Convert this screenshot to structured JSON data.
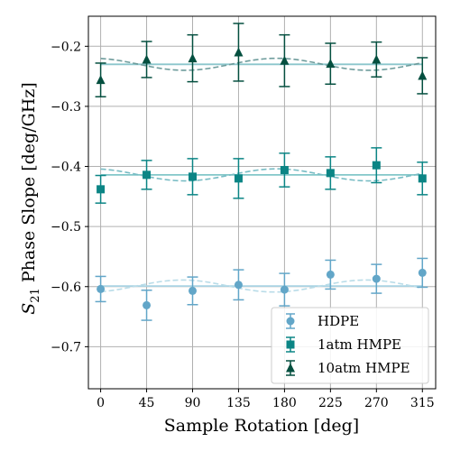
{
  "chart_data": {
    "type": "scatter",
    "xlabel": "Sample Rotation [deg]",
    "ylabel_sub": "21",
    "ylabel_rest": " Phase Slope [deg/GHz]",
    "ylabel_var": "S",
    "xlim": [
      -12,
      328
    ],
    "ylim": [
      -0.77,
      -0.15
    ],
    "xticks": [
      0,
      45,
      90,
      135,
      180,
      225,
      270,
      315
    ],
    "yticks": [
      -0.7,
      -0.6,
      -0.5,
      -0.4,
      -0.3,
      -0.2
    ],
    "ytick_labels": [
      "−0.7",
      "−0.6",
      "−0.5",
      "−0.4",
      "−0.3",
      "−0.2"
    ],
    "xtick_labels": [
      "0",
      "45",
      "90",
      "135",
      "180",
      "225",
      "270",
      "315"
    ],
    "grid": true,
    "legend_position": "lower-right",
    "series": [
      {
        "name": "HDPE",
        "marker": "circle",
        "color": "#62a6c8",
        "mean_color": "#a9d3e3",
        "fit_color": "#b9dce8",
        "x": [
          0,
          45,
          90,
          135,
          180,
          225,
          270,
          315
        ],
        "y": [
          -0.604,
          -0.631,
          -0.607,
          -0.597,
          -0.605,
          -0.58,
          -0.587,
          -0.577
        ],
        "yerr": [
          0.021,
          0.025,
          0.023,
          0.025,
          0.027,
          0.024,
          0.024,
          0.024
        ],
        "mean": -0.599,
        "fit_amp": 0.01,
        "fit_phase_deg": 160
      },
      {
        "name": "1atm HMPE",
        "marker": "square",
        "color": "#0b8585",
        "mean_color": "#82c7c9",
        "fit_color": "#78bcc4",
        "x": [
          0,
          45,
          90,
          135,
          180,
          225,
          270,
          315
        ],
        "y": [
          -0.438,
          -0.414,
          -0.417,
          -0.42,
          -0.406,
          -0.411,
          -0.398,
          -0.42
        ],
        "yerr": [
          0.023,
          0.024,
          0.03,
          0.033,
          0.028,
          0.027,
          0.029,
          0.027
        ],
        "mean": -0.414,
        "fit_amp": 0.01,
        "fit_phase_deg": 345
      },
      {
        "name": "10atm HMPE",
        "marker": "triangle",
        "color": "#044f3f",
        "mean_color": "#8bc6cc",
        "fit_color": "#6e9c9c",
        "x": [
          0,
          45,
          90,
          135,
          180,
          225,
          270,
          315
        ],
        "y": [
          -0.256,
          -0.222,
          -0.22,
          -0.21,
          -0.224,
          -0.229,
          -0.222,
          -0.249
        ],
        "yerr": [
          0.028,
          0.03,
          0.039,
          0.048,
          0.043,
          0.034,
          0.029,
          0.03
        ],
        "mean": -0.23,
        "fit_amp": 0.01,
        "fit_phase_deg": 345
      }
    ]
  }
}
